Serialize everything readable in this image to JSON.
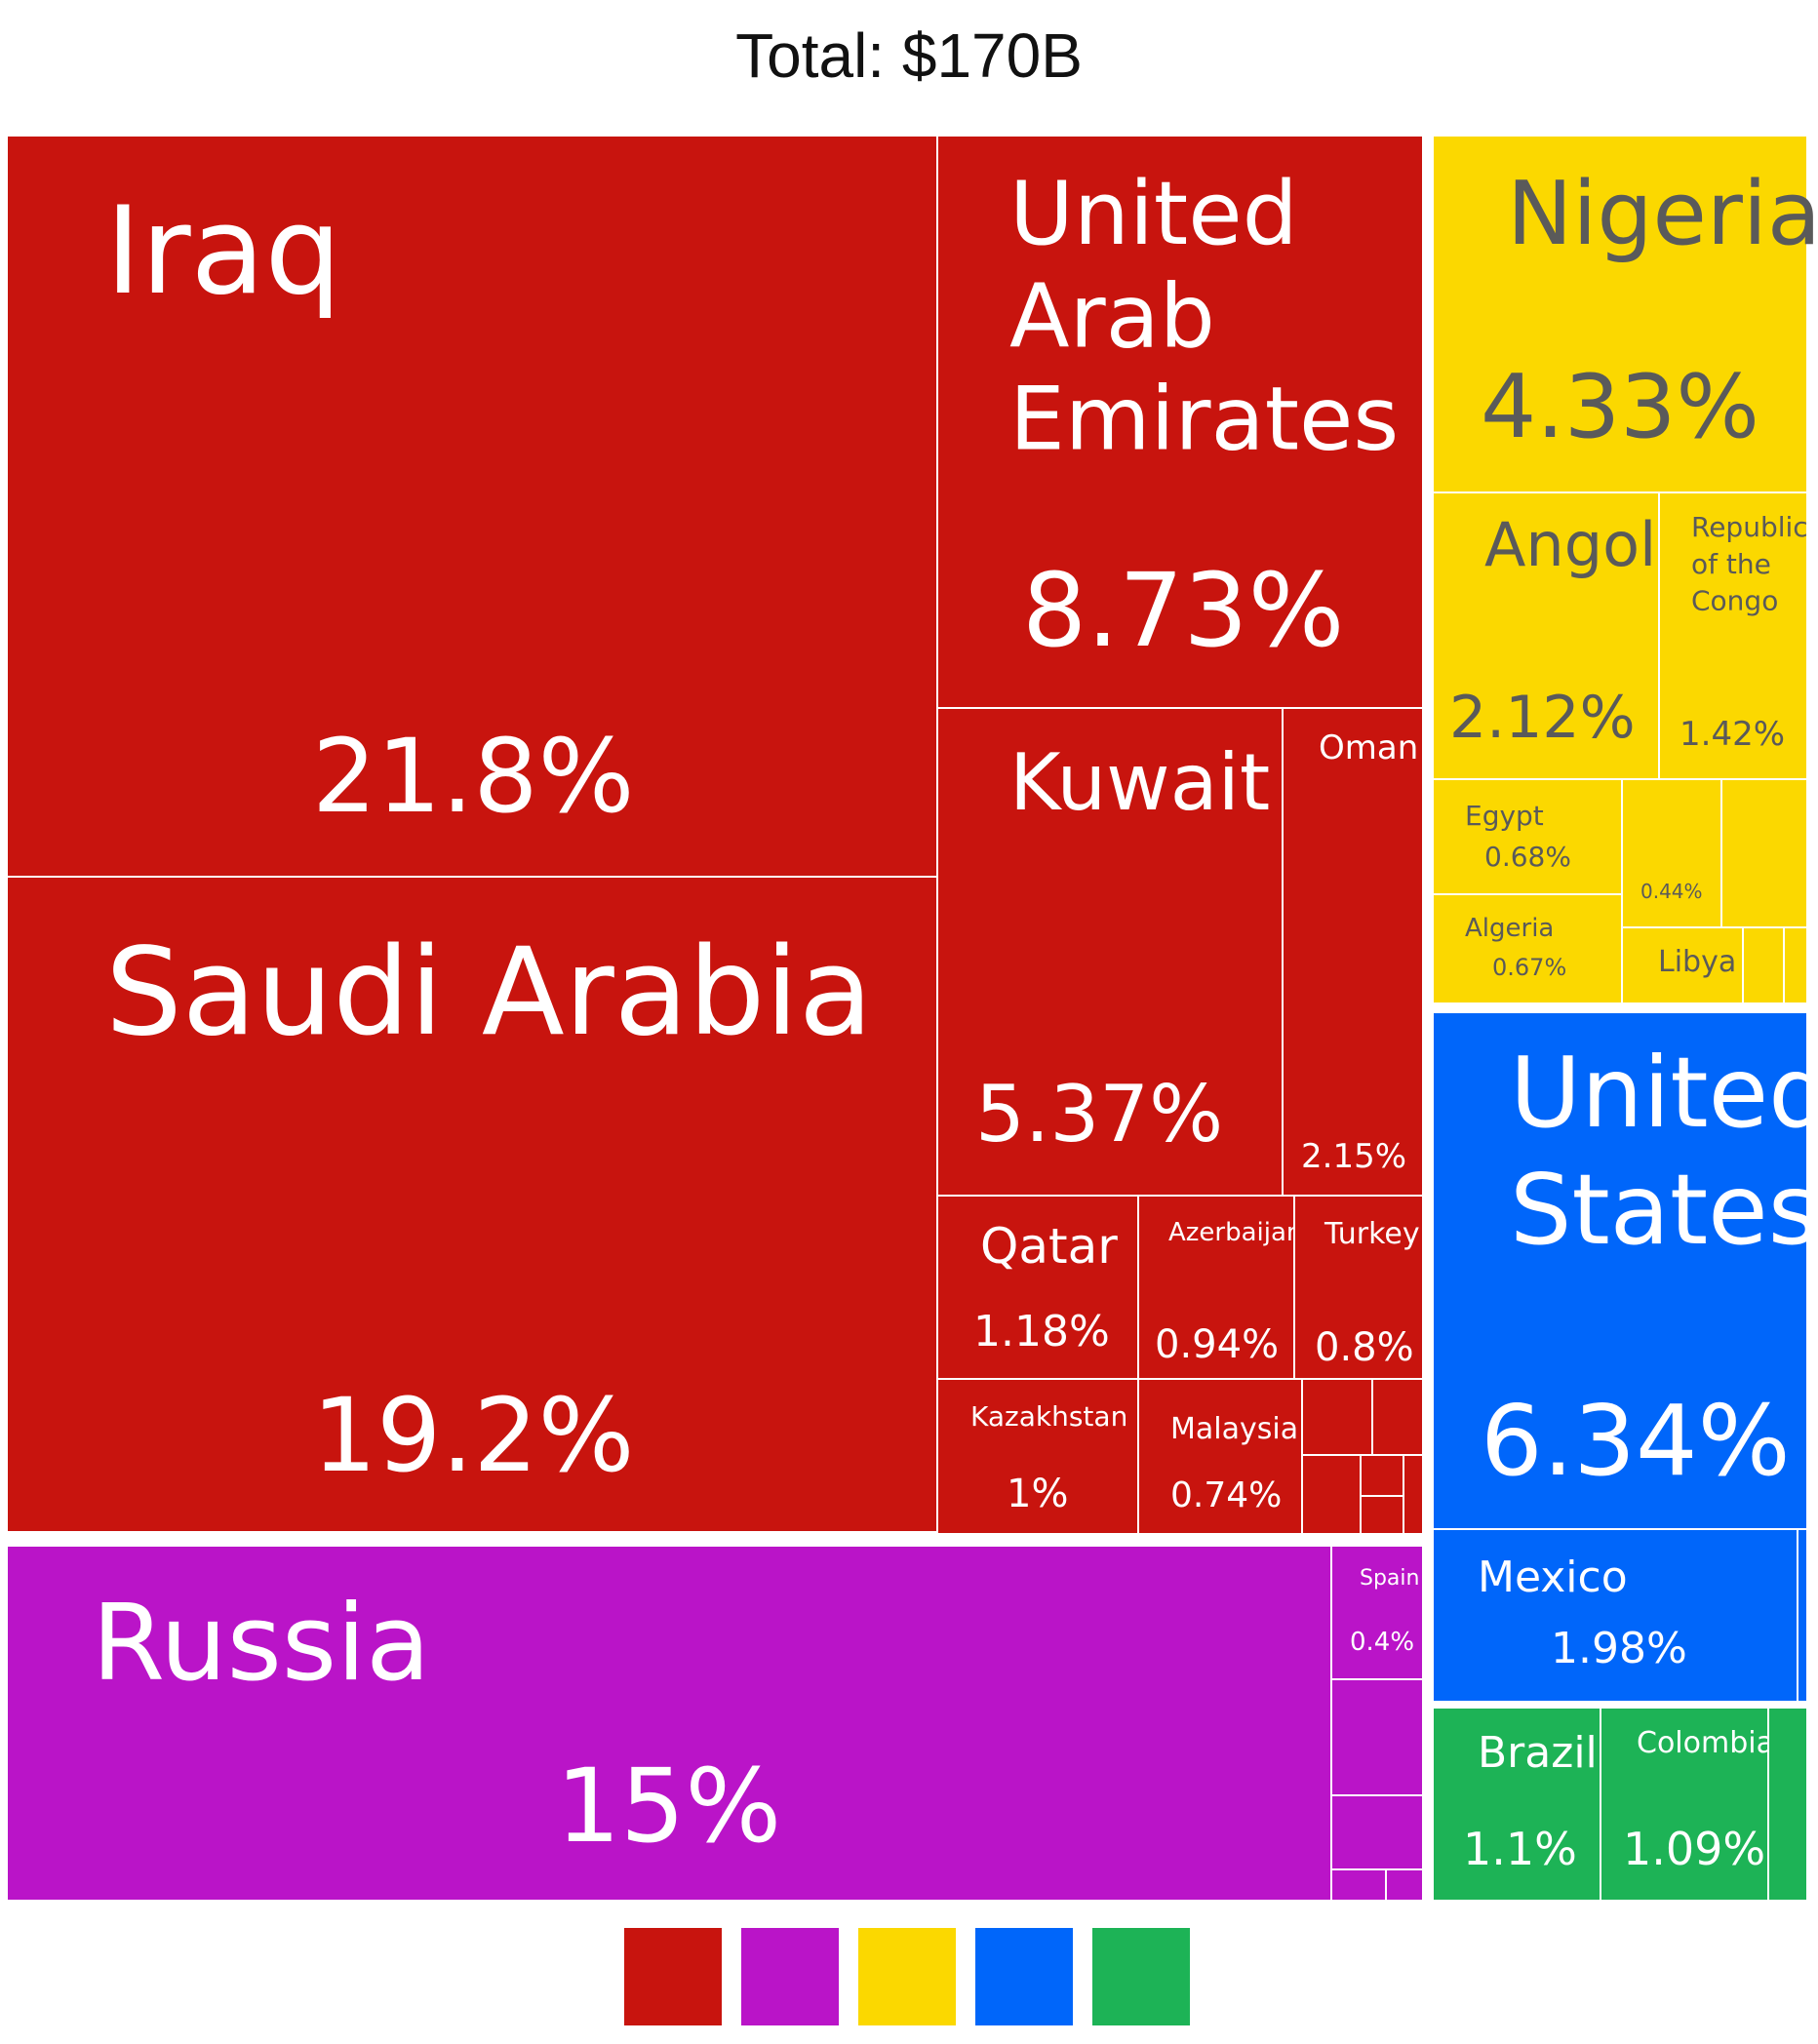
{
  "chart_data": {
    "type": "treemap",
    "title": "Total: $170B",
    "unit": "%",
    "colors": {
      "middle_east_asia": "#C8140E",
      "europe": "#BA14C8",
      "africa": "#FBD800",
      "north_america": "#0066FA",
      "south_america": "#1DB356"
    },
    "label_colors": {
      "light": "#FFFFFF",
      "dark": "#5A5A5A"
    },
    "legend": [
      "middle_east_asia",
      "europe",
      "africa",
      "north_america",
      "south_america"
    ],
    "items": [
      {
        "name": "Iraq",
        "value": 21.8,
        "value_label": "21.8%",
        "group": "middle_east_asia"
      },
      {
        "name": "Saudi Arabia",
        "value": 19.2,
        "value_label": "19.2%",
        "group": "middle_east_asia"
      },
      {
        "name": "United Arab Emirates",
        "value": 8.73,
        "value_label": "8.73%",
        "group": "middle_east_asia"
      },
      {
        "name": "Kuwait",
        "value": 5.37,
        "value_label": "5.37%",
        "group": "middle_east_asia"
      },
      {
        "name": "Oman",
        "value": 2.15,
        "value_label": "2.15%",
        "group": "middle_east_asia"
      },
      {
        "name": "Qatar",
        "value": 1.18,
        "value_label": "1.18%",
        "group": "middle_east_asia"
      },
      {
        "name": "Azerbaijan",
        "value": 0.94,
        "value_label": "0.94%",
        "group": "middle_east_asia"
      },
      {
        "name": "Turkey",
        "value": 0.8,
        "value_label": "0.8%",
        "group": "middle_east_asia"
      },
      {
        "name": "Kazakhstan",
        "value": 1,
        "value_label": "1%",
        "group": "middle_east_asia"
      },
      {
        "name": "Malaysia",
        "value": 0.74,
        "value_label": "0.74%",
        "group": "middle_east_asia"
      },
      {
        "name": "",
        "value": 0.3,
        "value_label": "",
        "group": "middle_east_asia"
      },
      {
        "name": "",
        "value": 0.2,
        "value_label": "",
        "group": "middle_east_asia"
      },
      {
        "name": "",
        "value": 0.2,
        "value_label": "",
        "group": "middle_east_asia"
      },
      {
        "name": "",
        "value": 0.1,
        "value_label": "",
        "group": "middle_east_asia"
      },
      {
        "name": "",
        "value": 0.08,
        "value_label": "",
        "group": "middle_east_asia"
      },
      {
        "name": "",
        "value": 0.05,
        "value_label": "",
        "group": "middle_east_asia"
      },
      {
        "name": "Russia",
        "value": 15,
        "value_label": "15%",
        "group": "europe"
      },
      {
        "name": "Spain",
        "value": 0.4,
        "value_label": "0.4%",
        "group": "europe"
      },
      {
        "name": "",
        "value": 0.3,
        "value_label": "",
        "group": "europe"
      },
      {
        "name": "",
        "value": 0.2,
        "value_label": "",
        "group": "europe"
      },
      {
        "name": "",
        "value": 0.08,
        "value_label": "",
        "group": "europe"
      },
      {
        "name": "",
        "value": 0.06,
        "value_label": "",
        "group": "europe"
      },
      {
        "name": "Nigeria",
        "value": 4.33,
        "value_label": "4.33%",
        "group": "africa"
      },
      {
        "name": "Angola",
        "value": 2.12,
        "value_label": "2.12%",
        "group": "africa"
      },
      {
        "name": "Republic of the Congo",
        "value": 1.42,
        "value_label": "1.42%",
        "group": "africa"
      },
      {
        "name": "Egypt",
        "value": 0.68,
        "value_label": "0.68%",
        "group": "africa"
      },
      {
        "name": "Algeria",
        "value": 0.67,
        "value_label": "0.67%",
        "group": "africa"
      },
      {
        "name": "",
        "value": 0.44,
        "value_label": "0.44%",
        "group": "africa"
      },
      {
        "name": "",
        "value": 0.3,
        "value_label": "",
        "group": "africa"
      },
      {
        "name": "Libya",
        "value": 0.36,
        "value_label": "",
        "group": "africa"
      },
      {
        "name": "",
        "value": 0.1,
        "value_label": "",
        "group": "africa"
      },
      {
        "name": "",
        "value": 0.06,
        "value_label": "",
        "group": "africa"
      },
      {
        "name": "United States",
        "value": 6.34,
        "value_label": "6.34%",
        "group": "north_america"
      },
      {
        "name": "Mexico",
        "value": 1.98,
        "value_label": "1.98%",
        "group": "north_america"
      },
      {
        "name": "",
        "value": 0.03,
        "value_label": "",
        "group": "north_america"
      },
      {
        "name": "Brazil",
        "value": 1.1,
        "value_label": "1.1%",
        "group": "south_america"
      },
      {
        "name": "Colombia",
        "value": 1.09,
        "value_label": "1.09%",
        "group": "south_america"
      },
      {
        "name": "",
        "value": 0.2,
        "value_label": "",
        "group": "south_america"
      }
    ]
  }
}
